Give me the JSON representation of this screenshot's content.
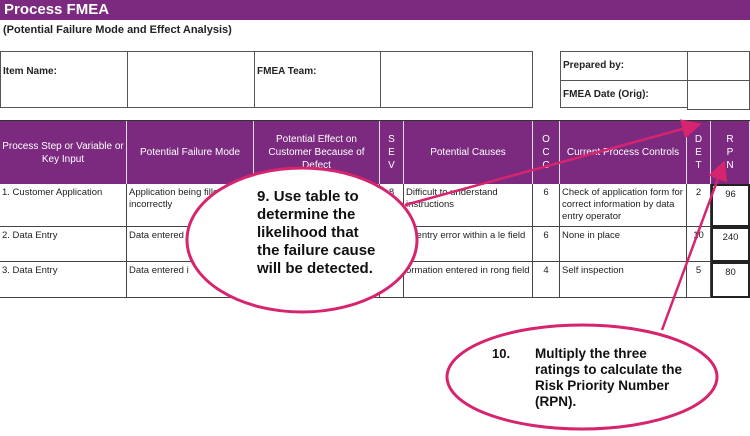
{
  "title": "Process FMEA",
  "subtitle": "(Potential Failure Mode and Effect Analysis)",
  "info": {
    "item_name": "Item Name:",
    "fmea_team": "FMEA Team:",
    "prepared_by": "Prepared by:",
    "fmea_date": "FMEA Date (Orig):"
  },
  "headers": [
    "Process Step or Variable or Key Input",
    "Potential Failure Mode",
    "Potential Effect on Customer Because of Defect",
    "S E V",
    "Potential Causes",
    "O C C",
    "Current Process Controls",
    "D E T",
    "R P N"
  ],
  "rows": [
    {
      "step": "1. Customer Application",
      "mode": "Application being filled out incorrectly",
      "effect": "",
      "sev": "8",
      "cause": "Difficult to understand instructions",
      "occ": "6",
      "controls": "Check of application form for correct information by data entry operator",
      "det": "2",
      "rpn": "96"
    },
    {
      "step": "2. Data Entry",
      "mode": "Data entered i",
      "effect": "",
      "sev": "",
      "cause": "ta entry error within a le field",
      "occ": "6",
      "controls": "None in place",
      "det": "10",
      "rpn": "240"
    },
    {
      "step": "3. Data Entry",
      "mode": "Data entered i",
      "effect": "",
      "sev": "",
      "cause": "ormation entered in rong field",
      "occ": "4",
      "controls": "Self inspection",
      "det": "5",
      "rpn": "80"
    }
  ],
  "callouts": {
    "c9": {
      "number": "9.",
      "text": "Use table to determine the likelihood that the failure cause will be detected."
    },
    "c10": {
      "number": "10.",
      "text": "Multiply the three ratings to calculate the Risk Priority Number (RPN)."
    }
  },
  "colors": {
    "header": "#7b2a7f",
    "callout": "#d6246e"
  }
}
